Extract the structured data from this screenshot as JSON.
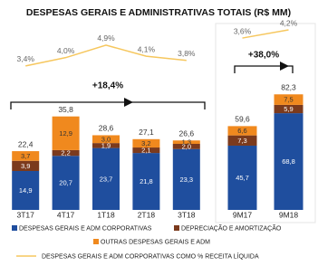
{
  "chart_data": [
    {
      "type": "bar",
      "stacked": true,
      "title": "DESPESAS GERAIS E ADMINISTRATIVAS TOTAIS (R$ MM)",
      "categories": [
        "3T17",
        "4T17",
        "1T18",
        "2T18",
        "3T18"
      ],
      "ylim": [
        0,
        70
      ],
      "y2lim": [
        -7,
        6.2
      ],
      "series": [
        {
          "name": "DESPESAS GERAIS E ADM CORPORATIVAS",
          "color": "#1f4e9e",
          "values": [
            14.9,
            20.7,
            23.7,
            21.8,
            23.3
          ],
          "value_labels": [
            "14,9",
            "20,7",
            "23,7",
            "21,8",
            "23,3"
          ]
        },
        {
          "name": "DEPRECIAÇÃO E AMORTIZAÇÃO",
          "color": "#7b3a1d",
          "values": [
            3.9,
            2.2,
            1.9,
            2.1,
            2.0
          ],
          "value_labels": [
            "3,9",
            "2,2",
            "1,9",
            "2,1",
            "2,0"
          ]
        },
        {
          "name": "OUTRAS DESPESAS GERAIS E ADM",
          "color": "#f0891e",
          "values": [
            3.7,
            12.9,
            3.0,
            3.2,
            1.3
          ],
          "value_labels": [
            "3,7",
            "12,9",
            "3,0",
            "3,2",
            "1,3"
          ]
        },
        {
          "name": "DESPESAS GERAIS E ADM CORPORATIVAS COMO % RECEITA LÍQUIDA",
          "type": "line",
          "axis": "y2",
          "color": "#f6c75e",
          "values": [
            3.4,
            4.0,
            4.9,
            4.1,
            3.8
          ],
          "value_labels": [
            "3,4%",
            "4,0%",
            "4,9%",
            "4,1%",
            "3,8%"
          ]
        }
      ],
      "totals": [
        22.4,
        35.8,
        28.6,
        27.1,
        26.6
      ],
      "total_labels": [
        "22,4",
        "35,8",
        "28,6",
        "27,1",
        "26,6"
      ],
      "annotation": "+18,4%"
    },
    {
      "type": "bar",
      "stacked": true,
      "categories": [
        "9M17",
        "9M18"
      ],
      "ylim": [
        0,
        130
      ],
      "y2lim": [
        -9,
        4.4
      ],
      "series": [
        {
          "color": "#1f4e9e",
          "values": [
            45.7,
            68.8
          ],
          "value_labels": [
            "45,7",
            "68,8"
          ]
        },
        {
          "color": "#7b3a1d",
          "values": [
            7.3,
            5.9
          ],
          "value_labels": [
            "7,3",
            "5,9"
          ]
        },
        {
          "color": "#f0891e",
          "values": [
            6.6,
            7.5
          ],
          "value_labels": [
            "6,6",
            "7,5"
          ]
        },
        {
          "type": "line",
          "axis": "y2",
          "color": "#f6c75e",
          "values": [
            3.6,
            4.2
          ],
          "value_labels": [
            "3,6%",
            "4,2%"
          ]
        }
      ],
      "totals": [
        59.6,
        82.3
      ],
      "total_labels": [
        "59,6",
        "82,3"
      ],
      "annotation": "+38,0%"
    }
  ]
}
